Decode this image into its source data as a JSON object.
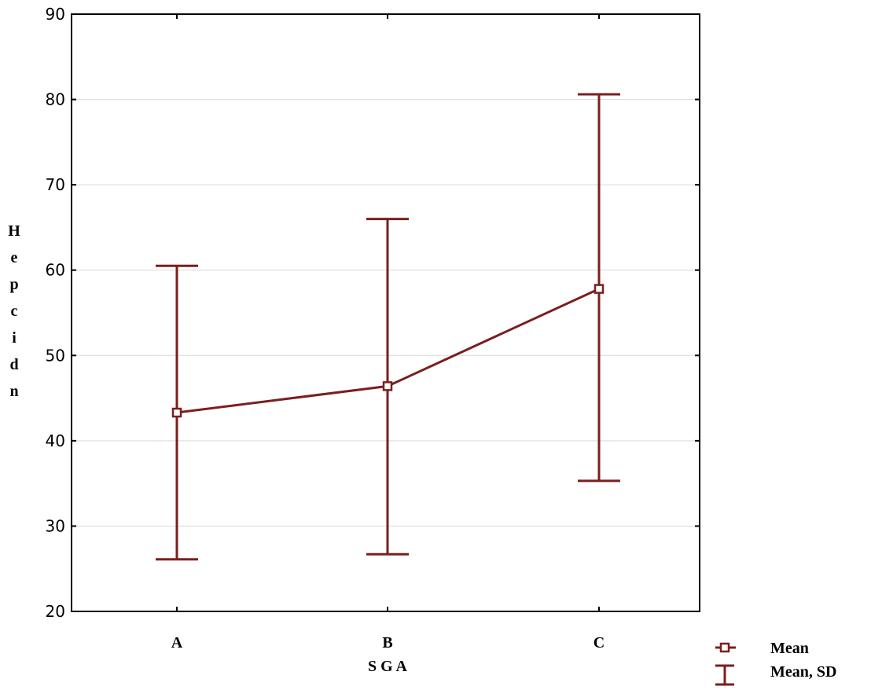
{
  "chart_data": {
    "type": "line",
    "xlabel": "S G A",
    "ylabel": "Hepcidn",
    "categories": [
      "A",
      "B",
      "C"
    ],
    "ylim": [
      20,
      90
    ],
    "yticks": [
      20,
      30,
      40,
      50,
      60,
      70,
      80,
      90
    ],
    "grid": true,
    "series": [
      {
        "name": "Mean",
        "values": [
          43.3,
          46.4,
          57.8
        ],
        "lower": [
          26.1,
          26.7,
          35.3
        ],
        "upper": [
          60.5,
          66.0,
          80.6
        ]
      }
    ],
    "legend": {
      "position": "bottom-right",
      "entries": [
        "Mean",
        "Mean, SD"
      ]
    },
    "colors": {
      "series": "#7a1f1f",
      "grid": "#d9d9d9",
      "axis": "#000000"
    }
  }
}
